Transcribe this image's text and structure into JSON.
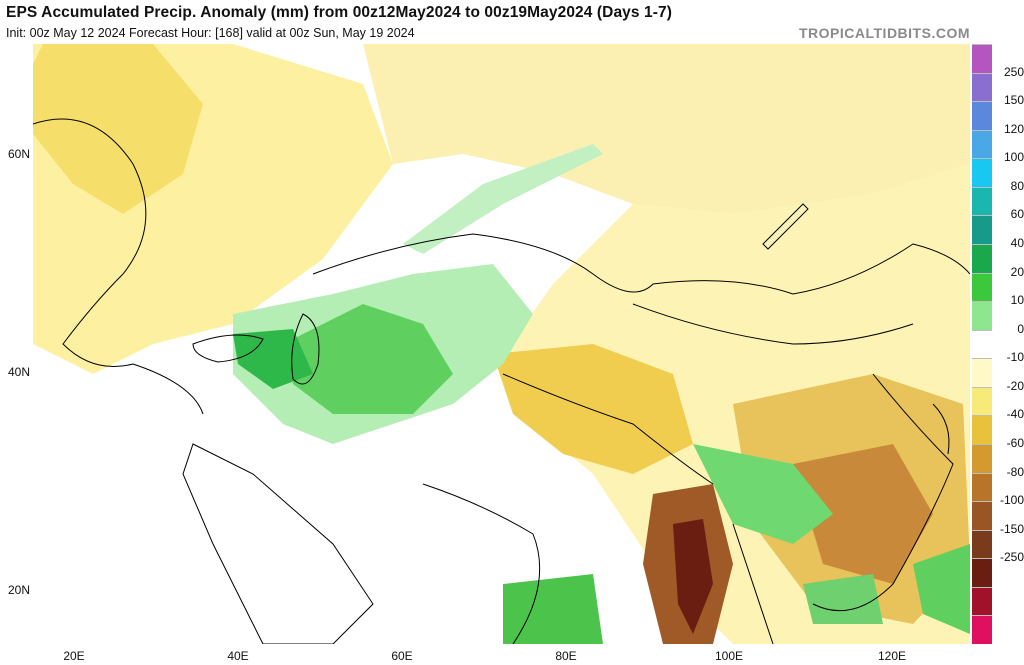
{
  "header": {
    "title": "EPS Accumulated Precip. Anomaly (mm) from 00z12May2024 to 00z19May2024 (Days 1-7)",
    "subtitle": "Init: 00z May 12 2024   Forecast Hour: [168]   valid at 00z Sun, May 19 2024",
    "brand": "TROPICALTIDBITS.COM"
  },
  "axes": {
    "lat_labels": [
      "60N",
      "40N",
      "20N"
    ],
    "lon_labels": [
      "20E",
      "40E",
      "60E",
      "80E",
      "100E",
      "120E"
    ]
  },
  "colorbar": {
    "labels": [
      "250",
      "150",
      "120",
      "100",
      "80",
      "60",
      "40",
      "20",
      "10",
      "0",
      "-10",
      "-20",
      "-40",
      "-60",
      "-80",
      "-100",
      "-150",
      "-250"
    ],
    "colors": [
      "#b455c0",
      "#8a6fd0",
      "#5b88dc",
      "#4aa8e6",
      "#19c8f0",
      "#1ab6b0",
      "#169a8a",
      "#1aa84c",
      "#3cc83c",
      "#8ee68e",
      "#ffffff",
      "#fff9c8",
      "#f7ea78",
      "#e8c23a",
      "#d49a2e",
      "#b8752a",
      "#9a5524",
      "#7a3a1c",
      "#6a1e12",
      "#a0122a",
      "#e01060"
    ]
  }
}
